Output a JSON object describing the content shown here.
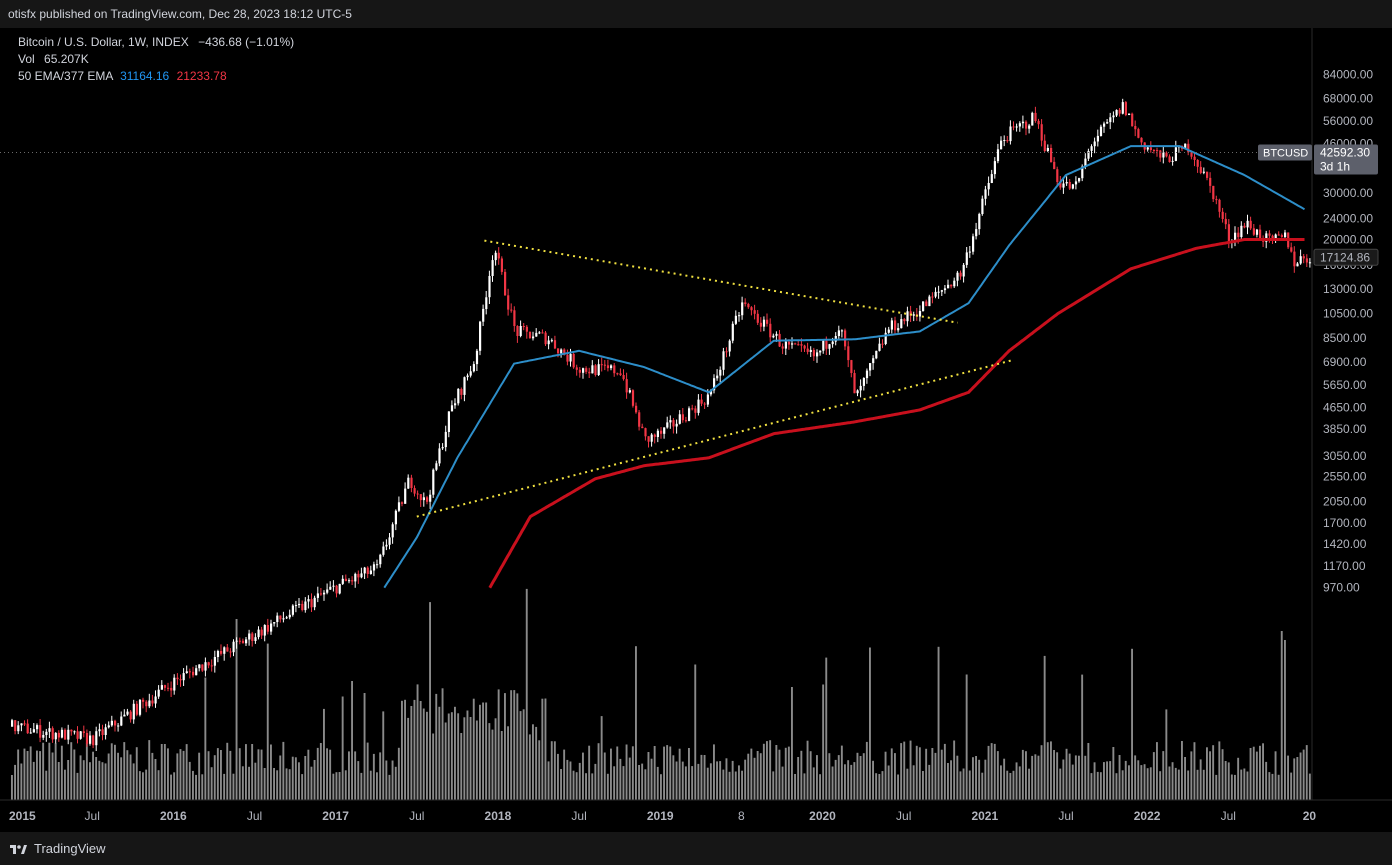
{
  "header": {
    "published": "otisfx published on TradingView.com, Dec 28, 2023 18:12 UTC-5"
  },
  "legend": {
    "symbol": "Bitcoin / U.S. Dollar, 1W, INDEX",
    "change": "−436.68 (−1.01%)",
    "vol_label": "Vol",
    "vol_value": "65.207K",
    "ema_label": "50 EMA/377 EMA",
    "ema50_value": "31164.16",
    "ema377_value": "21233.78"
  },
  "footer": {
    "brand": "TradingView"
  },
  "colors": {
    "background": "#000000",
    "up_candle": "#ffffff",
    "down_candle": "#f23645",
    "ema50": "#2d8ec9",
    "ema377": "#c8101d",
    "trendline": "#f0e040",
    "volume": "#8a8a8a"
  },
  "chart_data": {
    "type": "candlestick",
    "scale": "log",
    "y_ticks": [
      "84000.00",
      "68000.00",
      "56000.00",
      "46000.00",
      "30000.00",
      "24000.00",
      "20000.00",
      "16000.00",
      "13000.00",
      "10500.00",
      "8500.00",
      "6900.00",
      "5650.00",
      "4650.00",
      "3850.00",
      "3050.00",
      "2550.00",
      "2050.00",
      "1700.00",
      "1420.00",
      "1170.00",
      "970.00"
    ],
    "x_ticks": [
      "2015",
      "Jul",
      "2016",
      "Jul",
      "2017",
      "Jul",
      "2018",
      "Jul",
      "2019",
      "8",
      "2020",
      "Jul",
      "2021",
      "Jul",
      "2022",
      "Jul",
      "20"
    ],
    "last_price_label": {
      "symbol": "BTCUSD",
      "price": "42592.30",
      "countdown": "3d 1h"
    },
    "ema_label": "17124.86",
    "trendlines": [
      {
        "name": "descending resistance",
        "from": {
          "date": "2017-12",
          "price": 19800
        },
        "to": {
          "date": "2020-11",
          "price": 9700
        }
      },
      {
        "name": "ascending support",
        "from": {
          "date": "2017-07",
          "price": 1800
        },
        "to": {
          "date": "2021-03",
          "price": 7000
        }
      }
    ],
    "price_keypoints": [
      [
        2015.0,
        290
      ],
      [
        2015.5,
        260
      ],
      [
        2016.0,
        430
      ],
      [
        2016.5,
        650
      ],
      [
        2017.0,
        980
      ],
      [
        2017.25,
        1150
      ],
      [
        2017.45,
        2500
      ],
      [
        2017.55,
        2000
      ],
      [
        2017.7,
        4500
      ],
      [
        2017.85,
        7000
      ],
      [
        2017.97,
        19000
      ],
      [
        2018.1,
        9000
      ],
      [
        2018.3,
        8500
      ],
      [
        2018.5,
        6500
      ],
      [
        2018.75,
        6400
      ],
      [
        2018.9,
        3500
      ],
      [
        2019.0,
        3700
      ],
      [
        2019.3,
        5200
      ],
      [
        2019.5,
        11500
      ],
      [
        2019.75,
        8000
      ],
      [
        2019.95,
        7200
      ],
      [
        2020.1,
        9500
      ],
      [
        2020.2,
        5000
      ],
      [
        2020.4,
        9200
      ],
      [
        2020.6,
        11000
      ],
      [
        2020.85,
        15000
      ],
      [
        2021.0,
        30000
      ],
      [
        2021.1,
        48000
      ],
      [
        2021.3,
        58000
      ],
      [
        2021.45,
        33000
      ],
      [
        2021.55,
        31000
      ],
      [
        2021.65,
        46000
      ],
      [
        2021.85,
        64000
      ],
      [
        2021.95,
        47000
      ],
      [
        2022.1,
        40000
      ],
      [
        2022.25,
        45000
      ],
      [
        2022.4,
        30000
      ],
      [
        2022.5,
        20000
      ],
      [
        2022.6,
        23000
      ],
      [
        2022.75,
        19500
      ],
      [
        2022.85,
        20500
      ],
      [
        2022.9,
        16500
      ],
      [
        2022.97,
        17100
      ]
    ],
    "ema50_keypoints": [
      [
        2017.3,
        970
      ],
      [
        2017.5,
        1500
      ],
      [
        2017.75,
        3000
      ],
      [
        2018.1,
        6800
      ],
      [
        2018.5,
        7600
      ],
      [
        2018.9,
        6600
      ],
      [
        2019.3,
        5300
      ],
      [
        2019.7,
        8300
      ],
      [
        2020.2,
        8400
      ],
      [
        2020.6,
        9000
      ],
      [
        2020.9,
        11500
      ],
      [
        2021.15,
        19000
      ],
      [
        2021.5,
        35000
      ],
      [
        2021.9,
        45000
      ],
      [
        2022.2,
        45000
      ],
      [
        2022.6,
        35000
      ],
      [
        2022.97,
        26000
      ]
    ],
    "ema377_keypoints": [
      [
        2017.95,
        970
      ],
      [
        2018.2,
        1800
      ],
      [
        2018.6,
        2500
      ],
      [
        2018.9,
        2800
      ],
      [
        2019.3,
        3000
      ],
      [
        2019.7,
        3700
      ],
      [
        2020.2,
        4100
      ],
      [
        2020.6,
        4550
      ],
      [
        2020.9,
        5300
      ],
      [
        2021.15,
        7600
      ],
      [
        2021.45,
        10500
      ],
      [
        2021.9,
        15500
      ],
      [
        2022.3,
        18500
      ],
      [
        2022.6,
        20000
      ],
      [
        2022.97,
        20000
      ]
    ]
  }
}
